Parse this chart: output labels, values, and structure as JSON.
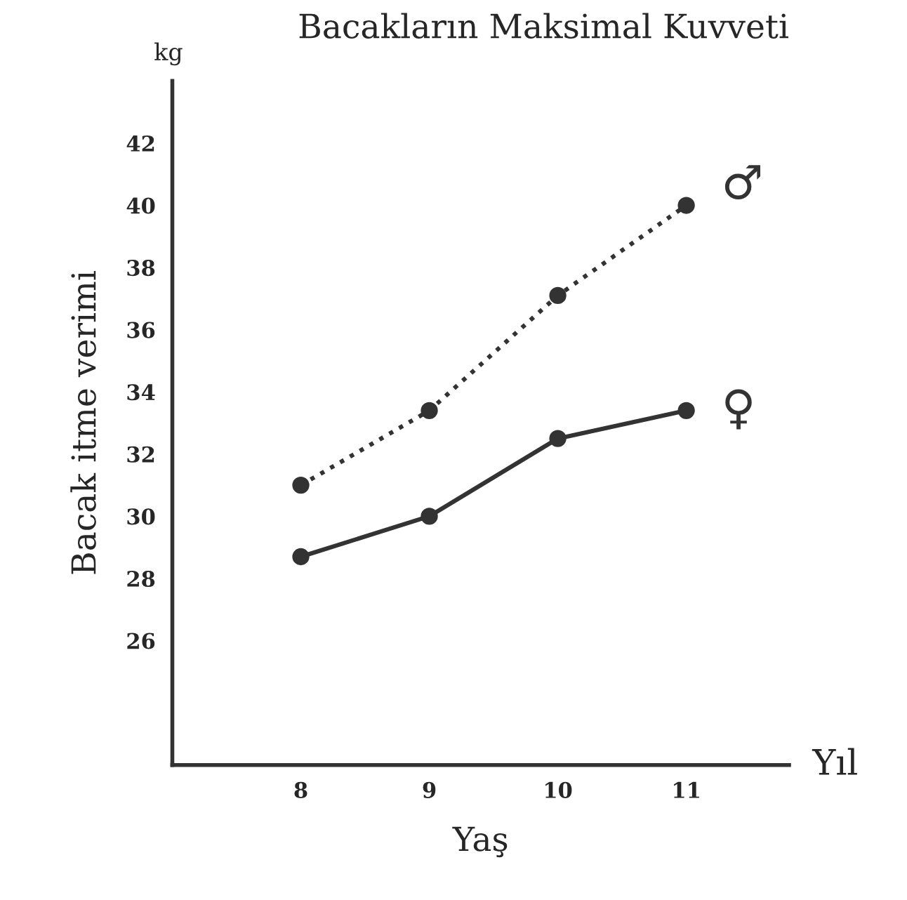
{
  "chart_data": {
    "type": "line",
    "title": "Bacakların Maksimal Kuvveti",
    "xlabel": "Yaş",
    "ylabel": "Bacak itme verimi",
    "annotations": [
      "kg",
      "Yıl"
    ],
    "x": [
      8,
      9,
      10,
      11
    ],
    "series": [
      {
        "name": "♂",
        "color": "#333333",
        "line_style": "dotted",
        "values": [
          31,
          33.4,
          37.1,
          40
        ]
      },
      {
        "name": "♀",
        "color": "#333333",
        "line_style": "solid",
        "values": [
          28.7,
          30,
          32.5,
          33.4
        ]
      }
    ],
    "xlim": [
      7,
      11.8
    ],
    "xticks": [
      8,
      9,
      10,
      11
    ],
    "ylim": [
      22,
      44
    ],
    "yticks": [
      26,
      28,
      30,
      32,
      34,
      36,
      38,
      40,
      42
    ],
    "marker": "circle",
    "grid": false,
    "legend": false
  }
}
